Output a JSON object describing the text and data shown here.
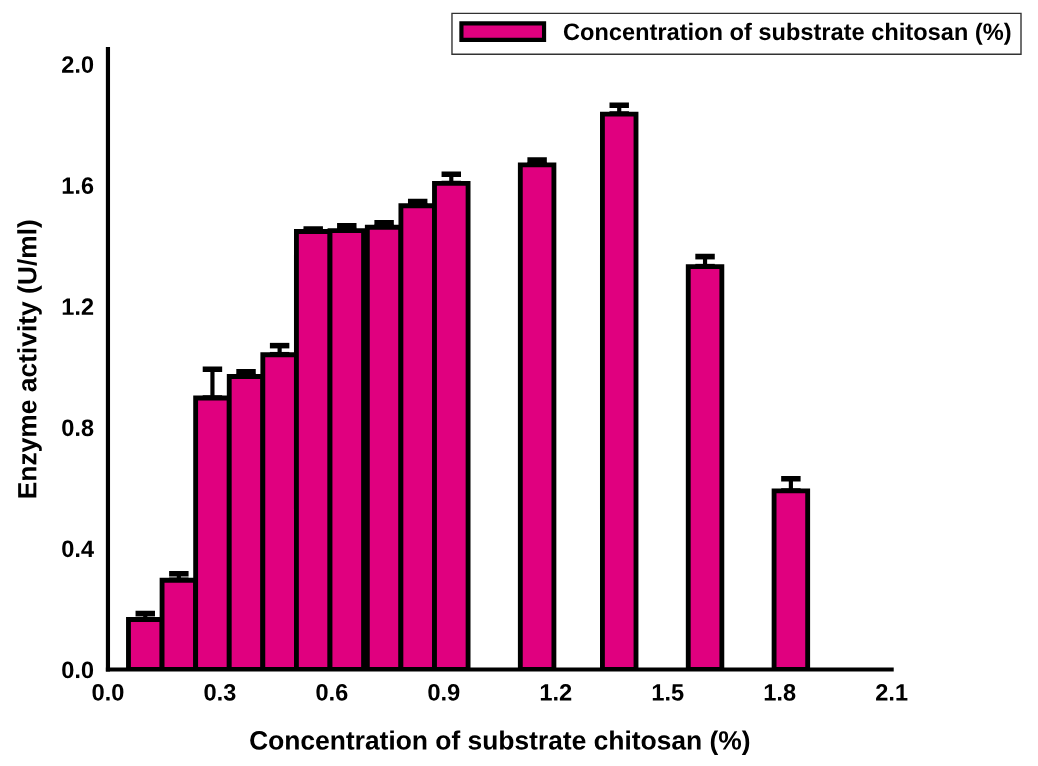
{
  "chart_data": {
    "type": "bar",
    "xlabel": "Concentration of substrate chitosan (%)",
    "ylabel": "Enzyme activity (U/ml)",
    "x": [
      0.1,
      0.19,
      0.28,
      0.37,
      0.46,
      0.55,
      0.64,
      0.74,
      0.83,
      0.92,
      1.15,
      1.37,
      1.6,
      1.83
    ],
    "series": [
      {
        "name": "Concentration of substrate chitosan (%)",
        "color": "#e0007f",
        "values": [
          0.165,
          0.295,
          0.897,
          0.968,
          1.04,
          1.447,
          1.45,
          1.461,
          1.532,
          1.606,
          1.667,
          1.835,
          1.331,
          0.59
        ],
        "errors": [
          0.02,
          0.021,
          0.095,
          0.016,
          0.03,
          0.008,
          0.016,
          0.015,
          0.014,
          0.03,
          0.016,
          0.029,
          0.033,
          0.04
        ]
      }
    ],
    "xlim": [
      0,
      2.1
    ],
    "xticks": [
      {
        "value": 0,
        "label": "0.0"
      },
      0.3,
      0.6,
      0.9,
      1.2,
      1.5,
      1.8,
      2.1
    ],
    "ylim": [
      0,
      2.05
    ],
    "yticks": [
      {
        "value": 0,
        "label": "0.0"
      },
      0.4,
      0.8,
      1.2,
      1.6,
      {
        "value": 2,
        "label": "2.0"
      }
    ],
    "legend": "top right",
    "grid": false
  }
}
